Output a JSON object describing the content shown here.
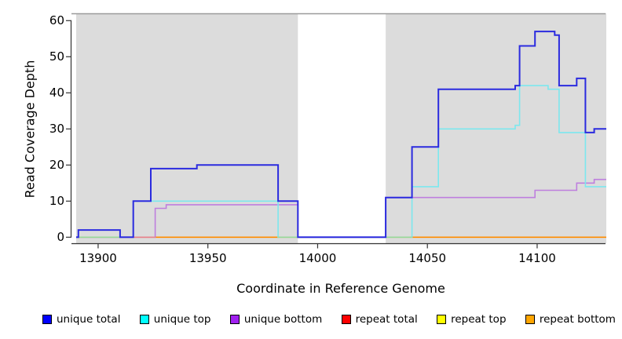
{
  "chart_data": {
    "type": "line",
    "subtype": "step-coverage",
    "title": "",
    "xlabel": "Coordinate in Reference Genome",
    "ylabel": "Read Coverage Depth",
    "xlim": [
      13890,
      14131.5
    ],
    "ylim": [
      0,
      62
    ],
    "x_ticks": [
      13900,
      13950,
      14000,
      14050,
      14100
    ],
    "y_ticks": [
      0,
      10,
      20,
      30,
      40,
      50,
      60
    ],
    "grid": false,
    "legend_position": "bottom",
    "plot_background": {
      "color": "#DCDCDC",
      "top_border_color": "#9B9B9B"
    },
    "gap_region": {
      "x0": 13991,
      "x1": 14031,
      "color": "#FFFFFF"
    },
    "zero_line_overlaps": [
      {
        "x0": 13890,
        "x1": 13916,
        "color": "#98D998"
      },
      {
        "x0": 13916,
        "x1": 13926,
        "color": "#E8828C"
      },
      {
        "x0": 13982,
        "x1": 14043,
        "color": "#98D998"
      }
    ],
    "series": [
      {
        "name": "unique total",
        "swatch_color": "#0000FF",
        "line_color": "#2B2BDF",
        "line_width": 2,
        "steps": [
          [
            13890,
            0
          ],
          [
            13891,
            2
          ],
          [
            13910,
            0
          ],
          [
            13916,
            10
          ],
          [
            13924,
            19
          ],
          [
            13945,
            20
          ],
          [
            13982,
            10
          ],
          [
            13991,
            0
          ],
          [
            14031,
            11
          ],
          [
            14043,
            25
          ],
          [
            14055,
            41
          ],
          [
            14090,
            42
          ],
          [
            14092,
            53
          ],
          [
            14099,
            57
          ],
          [
            14108,
            56
          ],
          [
            14110,
            42
          ],
          [
            14118,
            44
          ],
          [
            14122,
            29
          ],
          [
            14126,
            30
          ],
          [
            14131.5,
            30
          ]
        ]
      },
      {
        "name": "unique top",
        "swatch_color": "#00FFFF",
        "line_color": "#7CE8EE",
        "line_width": 1.6,
        "steps": [
          [
            13890,
            0
          ],
          [
            13916,
            10
          ],
          [
            13982,
            0
          ],
          [
            14043,
            14
          ],
          [
            14055,
            30
          ],
          [
            14090,
            31
          ],
          [
            14092,
            42
          ],
          [
            14105,
            41
          ],
          [
            14110,
            29
          ],
          [
            14122,
            14
          ],
          [
            14131.5,
            14
          ]
        ]
      },
      {
        "name": "unique bottom",
        "swatch_color": "#A020F0",
        "line_color": "#BE7FDE",
        "line_width": 1.6,
        "steps": [
          [
            13890,
            0
          ],
          [
            13926,
            8
          ],
          [
            13931,
            9
          ],
          [
            13991,
            0
          ],
          [
            14031,
            11
          ],
          [
            14099,
            13
          ],
          [
            14118,
            15
          ],
          [
            14126,
            16
          ],
          [
            14131.5,
            16
          ]
        ]
      },
      {
        "name": "repeat total",
        "swatch_color": "#FF0000",
        "line_color": "#E8828C",
        "line_width": 1.4,
        "steps": [
          [
            13890,
            0
          ],
          [
            14131.5,
            0
          ]
        ]
      },
      {
        "name": "repeat top",
        "swatch_color": "#FFFF00",
        "line_color": "#98D998",
        "line_width": 1.4,
        "steps": [
          [
            13890,
            0
          ],
          [
            14131.5,
            0
          ]
        ]
      },
      {
        "name": "repeat bottom",
        "swatch_color": "#FFA500",
        "line_color": "#FF8C00",
        "line_width": 1.6,
        "steps": [
          [
            13890,
            0
          ],
          [
            14131.5,
            0
          ]
        ]
      }
    ]
  }
}
